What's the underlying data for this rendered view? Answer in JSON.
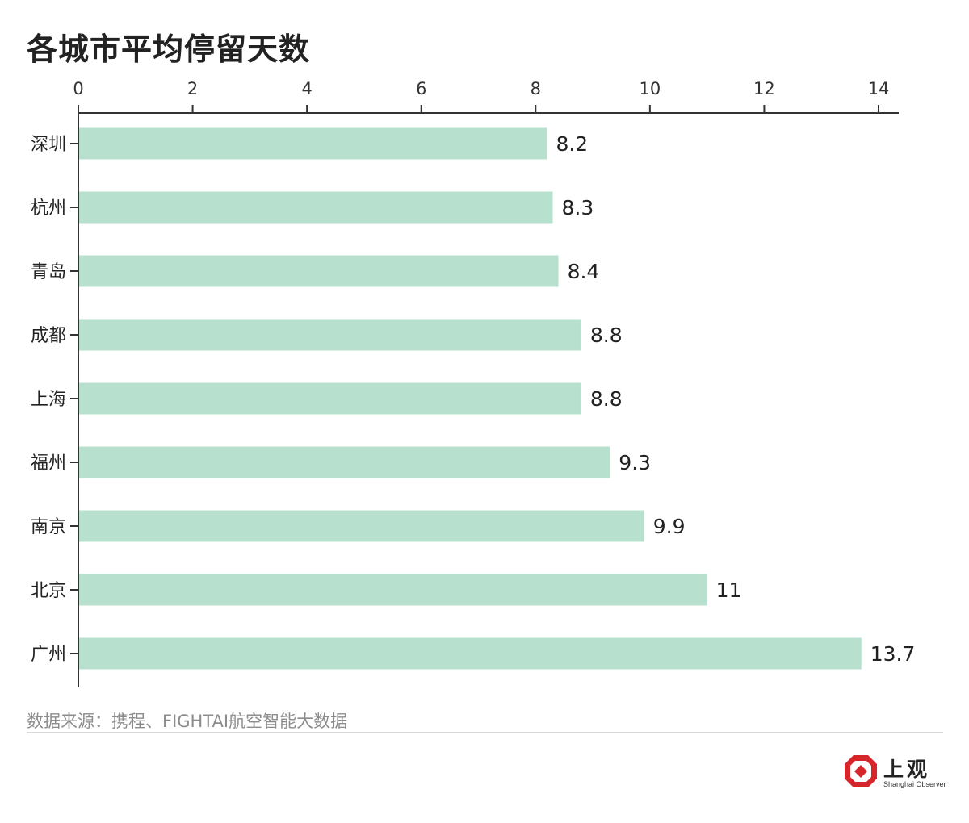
{
  "title": "各城市平均停留天数",
  "source": "数据来源：携程、FIGHTAI航空智能大数据",
  "logo": {
    "cn": "上观",
    "en": "Shanghai Observer"
  },
  "colors": {
    "bar": "#b8e0ce",
    "axis": "#333333",
    "logo_red": "#d6262b"
  },
  "chart_data": {
    "type": "bar",
    "orientation": "horizontal",
    "categories": [
      "深圳",
      "杭州",
      "青岛",
      "成都",
      "上海",
      "福州",
      "南京",
      "北京",
      "广州"
    ],
    "values": [
      8.2,
      8.3,
      8.4,
      8.8,
      8.8,
      9.3,
      9.9,
      11,
      13.7
    ],
    "value_labels": [
      "8.2",
      "8.3",
      "8.4",
      "8.8",
      "8.8",
      "9.3",
      "9.9",
      "11",
      "13.7"
    ],
    "xlim": [
      0,
      14
    ],
    "xticks": [
      "0",
      "2",
      "4",
      "6",
      "8",
      "10",
      "12",
      "14"
    ],
    "axis_position": "top",
    "grid": false,
    "legend": "none"
  }
}
